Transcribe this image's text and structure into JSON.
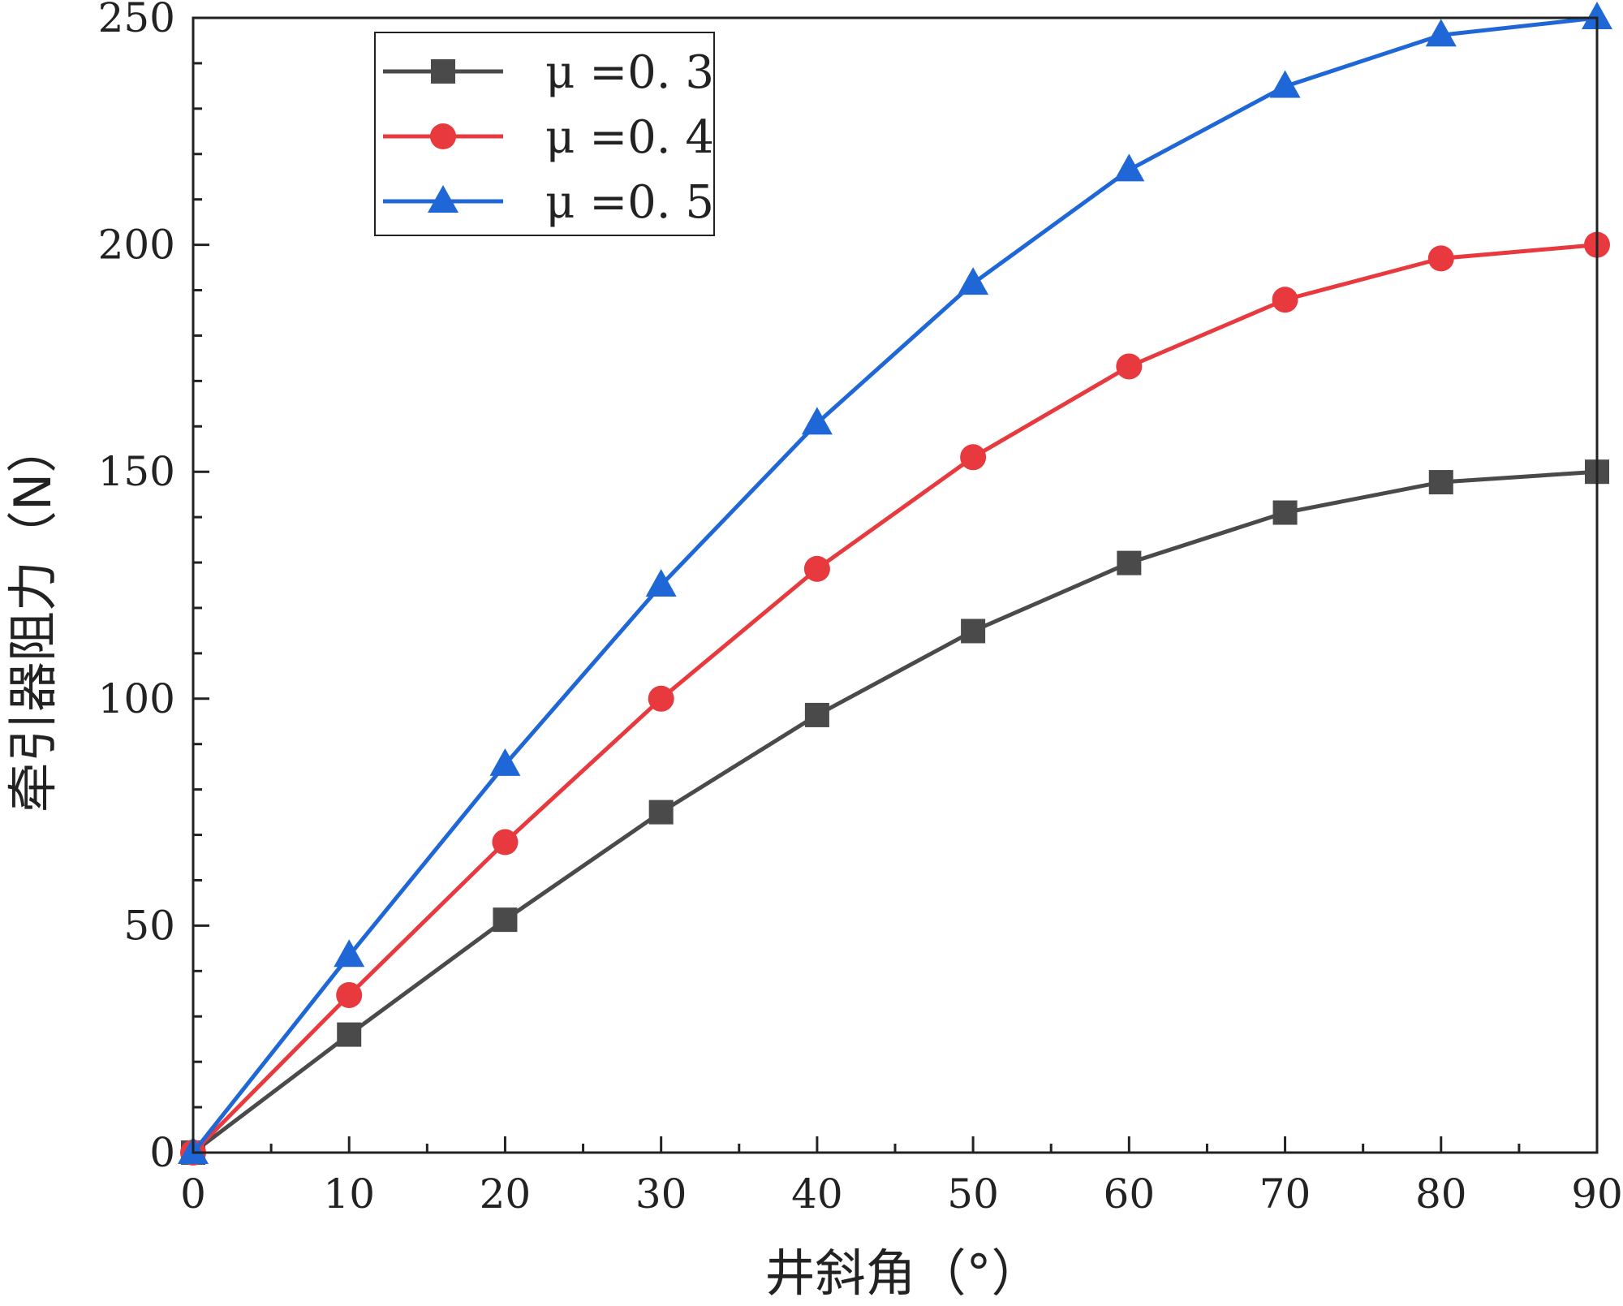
{
  "chart_data": {
    "type": "line",
    "title": "",
    "xlabel": "井斜角（°）",
    "ylabel": "牵引器阻力（N）",
    "xlim": [
      0,
      90
    ],
    "ylim": [
      0,
      250
    ],
    "xticks": [
      0,
      10,
      20,
      30,
      40,
      50,
      60,
      70,
      80,
      90
    ],
    "yticks": [
      0,
      50,
      100,
      150,
      200,
      250
    ],
    "x": [
      0,
      10,
      20,
      30,
      40,
      50,
      60,
      70,
      80,
      90
    ],
    "legend_position": "top-left",
    "grid": false,
    "series": [
      {
        "name": "μ =0. 3",
        "marker": "square",
        "color": "#4a4a4a",
        "values": [
          0,
          26,
          51.3,
          75,
          96.4,
          114.9,
          129.9,
          141,
          147.7,
          150
        ]
      },
      {
        "name": "μ =0. 4",
        "marker": "circle",
        "color": "#e8393f",
        "values": [
          0,
          34.7,
          68.4,
          100,
          128.6,
          153.2,
          173.2,
          187.9,
          197,
          200
        ]
      },
      {
        "name": "μ =0. 5",
        "marker": "triangle",
        "color": "#1f67d6",
        "values": [
          0,
          43.4,
          85.5,
          125,
          160.7,
          191.5,
          216.5,
          234.9,
          246.2,
          250
        ]
      }
    ]
  }
}
